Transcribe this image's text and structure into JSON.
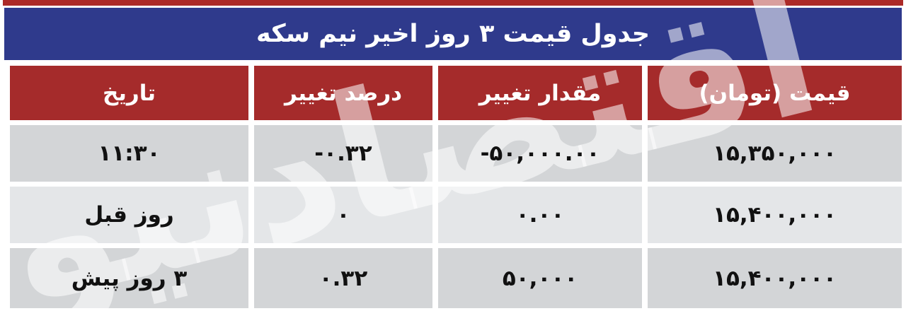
{
  "page": {
    "watermark": "اقتصادنیوز"
  },
  "colors": {
    "top_strip_red": "#AC2A28",
    "header_red": "#A52B2B",
    "title_blue": "#2F3A8C",
    "row_gray": "#D3D5D7",
    "row_light_gray": "#E4E6E8",
    "text_dark": "#111111",
    "text_white": "#FFFFFF"
  },
  "chart_data": {
    "type": "table",
    "title": "جدول قیمت ۳ روز اخیر نیم سکه",
    "columns": [
      "قیمت (تومان)",
      "مقدار تغییر",
      "درصد تغییر",
      "تاریخ"
    ],
    "rows": [
      [
        "۱۵,۳۵۰,۰۰۰",
        "-۵۰,۰۰۰.۰۰",
        "-۰.۳۲",
        "۱۱:۳۰"
      ],
      [
        "۱۵,۴۰۰,۰۰۰",
        "۰.۰۰",
        "۰",
        "روز قبل"
      ],
      [
        "۱۵,۴۰۰,۰۰۰",
        "۵۰,۰۰۰",
        "۰.۳۲",
        "۳ روز پیش"
      ]
    ],
    "numeric": {
      "price_toman": [
        15350000,
        15400000,
        15400000
      ],
      "change_amount": [
        -50000.0,
        0.0,
        50000
      ],
      "change_percent": [
        -0.32,
        0,
        0.32
      ],
      "date_labels": [
        "11:30",
        "previous day",
        "3 days ago"
      ]
    }
  }
}
